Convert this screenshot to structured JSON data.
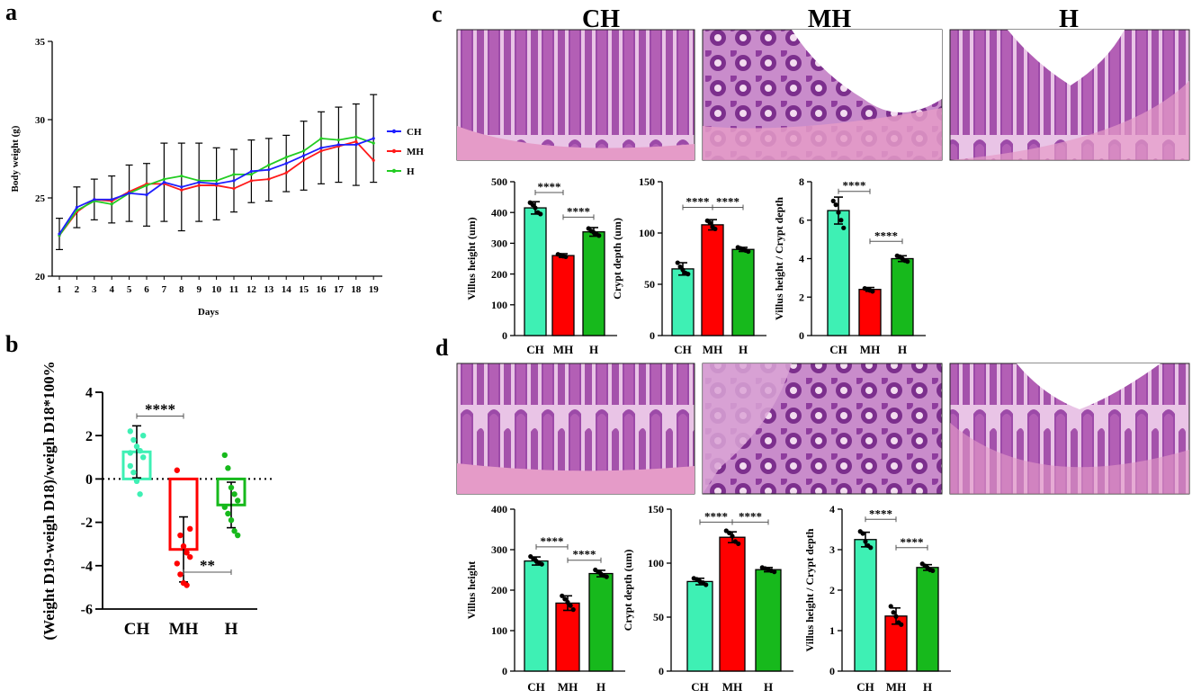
{
  "colors": {
    "CH": "#3ef0b4",
    "MH": "#ff0000",
    "H": "#17b91c",
    "lineCH": "#1f1fff",
    "lineMH": "#ff1a1a",
    "lineH": "#22cc22",
    "axis": "#000000"
  },
  "labels": {
    "a": "a",
    "b": "b",
    "c": "c",
    "d": "d"
  },
  "histology": {
    "headers": [
      "CH",
      "MH",
      "H"
    ],
    "c": [
      {
        "icon": "jejunum-villi-ch-image"
      },
      {
        "icon": "jejunum-villi-mh-image"
      },
      {
        "icon": "jejunum-villi-h-image"
      }
    ],
    "d": [
      {
        "icon": "ileum-villi-ch-image"
      },
      {
        "icon": "ileum-crypt-mh-image"
      },
      {
        "icon": "ileum-villi-h-image"
      }
    ]
  },
  "chart_data": [
    {
      "id": "a",
      "type": "line",
      "title": "",
      "xlabel": "Days",
      "ylabel": "Body weight (g)",
      "x": [
        1,
        2,
        3,
        4,
        5,
        6,
        7,
        8,
        9,
        10,
        11,
        12,
        13,
        14,
        15,
        16,
        17,
        18,
        19
      ],
      "xticks": [
        "1",
        "2",
        "3",
        "4",
        "5",
        "6",
        "7",
        "8",
        "9",
        "10",
        "11",
        "12",
        "13",
        "14",
        "15",
        "16",
        "17",
        "18",
        "19"
      ],
      "ylim": [
        20,
        35
      ],
      "yticks": [
        20,
        25,
        30,
        35
      ],
      "legend": "right",
      "series": [
        {
          "name": "CH",
          "values": [
            22.7,
            24.4,
            24.9,
            24.9,
            25.3,
            25.2,
            26.0,
            25.7,
            26.0,
            25.9,
            26.1,
            26.7,
            26.8,
            27.2,
            27.7,
            28.2,
            28.4,
            28.4,
            28.8
          ],
          "errors": [
            1.0,
            1.3,
            1.3,
            1.5,
            1.8,
            2.0,
            2.5,
            2.8,
            2.5,
            2.3,
            2.0,
            2.0,
            2.0,
            1.8,
            2.2,
            2.3,
            2.4,
            2.6,
            2.8
          ]
        },
        {
          "name": "MH",
          "values": [
            22.6,
            24.1,
            24.9,
            24.8,
            25.4,
            25.9,
            25.9,
            25.5,
            25.8,
            25.8,
            25.6,
            26.1,
            26.2,
            26.6,
            27.4,
            28.0,
            28.3,
            28.6,
            27.4
          ]
        },
        {
          "name": "H",
          "values": [
            22.6,
            24.2,
            24.8,
            24.6,
            25.3,
            25.8,
            26.2,
            26.4,
            26.1,
            26.1,
            26.5,
            26.5,
            27.1,
            27.6,
            28.0,
            28.8,
            28.7,
            28.9,
            28.5
          ]
        }
      ]
    },
    {
      "id": "b",
      "type": "bar",
      "categories": [
        "CH",
        "MH",
        "H"
      ],
      "values": [
        1.25,
        -3.25,
        -1.2
      ],
      "errors": [
        1.2,
        1.5,
        1.05
      ],
      "points": [
        [
          2.2,
          1.8,
          1.5,
          1.3,
          1.0,
          0.6,
          0.3,
          -0.1,
          -0.7,
          2.0,
          1.2
        ],
        [
          0.4,
          -2.6,
          -3.1,
          -3.4,
          -3.6,
          -3.9,
          -4.4,
          -4.8,
          -4.9,
          -2.3
        ],
        [
          1.1,
          0.5,
          -0.4,
          -0.7,
          -1.0,
          -1.3,
          -1.6,
          -1.9,
          -2.4,
          -2.6
        ]
      ],
      "ylabel": "(Weight D19-weigh D18)/weigh D18*100%",
      "ylim": [
        -6,
        4
      ],
      "yticks": [
        -6,
        -4,
        -2,
        0,
        2,
        4
      ],
      "baseline_dotted": true,
      "significance": [
        {
          "from": 0,
          "to": 1,
          "text": "****",
          "y": 2.9
        },
        {
          "from": 1,
          "to": 2,
          "text": "**",
          "y": -4.3
        }
      ]
    },
    {
      "id": "c1",
      "type": "bar",
      "categories": [
        "CH",
        "MH",
        "H"
      ],
      "values": [
        415,
        260,
        337
      ],
      "errors": [
        20,
        6,
        14
      ],
      "points": [
        [
          432,
          425,
          415,
          400,
          395
        ],
        [
          264,
          261,
          258,
          256
        ],
        [
          348,
          340,
          335,
          330,
          325
        ]
      ],
      "ylabel": "Villus height (um)",
      "ylim": [
        0,
        500
      ],
      "yticks": [
        0,
        100,
        200,
        300,
        400,
        500
      ],
      "significance": [
        {
          "from": 0,
          "to": 1,
          "text": "****",
          "y": 465
        },
        {
          "from": 1,
          "to": 2,
          "text": "****",
          "y": 385
        }
      ]
    },
    {
      "id": "c2",
      "type": "bar",
      "categories": [
        "CH",
        "MH",
        "H"
      ],
      "values": [
        65,
        108,
        84
      ],
      "errors": [
        6,
        5,
        2
      ],
      "points": [
        [
          71,
          67,
          64,
          61,
          60
        ],
        [
          112,
          110,
          106,
          104
        ],
        [
          86,
          85,
          84,
          83,
          82
        ]
      ],
      "ylabel": "Crypt depth (um)",
      "ylim": [
        0,
        150
      ],
      "yticks": [
        0,
        50,
        100,
        150
      ],
      "significance": [
        {
          "from": 0,
          "to": 1,
          "text": "****",
          "y": 125
        },
        {
          "from": 1,
          "to": 2,
          "text": "****",
          "y": 125
        }
      ]
    },
    {
      "id": "c3",
      "type": "bar",
      "categories": [
        "CH",
        "MH",
        "H"
      ],
      "values": [
        6.5,
        2.4,
        4.0
      ],
      "errors": [
        0.7,
        0.1,
        0.15
      ],
      "points": [
        [
          7.0,
          6.8,
          6.4,
          6.0,
          5.6
        ],
        [
          2.45,
          2.4,
          2.35,
          2.3
        ],
        [
          4.15,
          4.1,
          4.0,
          3.9,
          3.85
        ]
      ],
      "ylabel": "Villus height / Crypt depth",
      "ylim": [
        0,
        8
      ],
      "yticks": [
        0,
        2,
        4,
        6,
        8
      ],
      "significance": [
        {
          "from": 0,
          "to": 1,
          "text": "****",
          "y": 7.5
        },
        {
          "from": 1,
          "to": 2,
          "text": "****",
          "y": 4.9
        }
      ]
    },
    {
      "id": "d1",
      "type": "bar",
      "categories": [
        "CH",
        "MH",
        "H"
      ],
      "values": [
        272,
        168,
        241
      ],
      "errors": [
        10,
        18,
        8
      ],
      "points": [
        [
          283,
          277,
          272,
          268,
          264
        ],
        [
          186,
          178,
          170,
          162,
          152
        ],
        [
          250,
          245,
          240,
          236,
          233
        ]
      ],
      "ylabel": "Villus height",
      "ylim": [
        0,
        400
      ],
      "yticks": [
        0,
        100,
        200,
        300,
        400
      ],
      "significance": [
        {
          "from": 0,
          "to": 1,
          "text": "****",
          "y": 307
        },
        {
          "from": 1,
          "to": 2,
          "text": "****",
          "y": 274
        }
      ]
    },
    {
      "id": "d2",
      "type": "bar",
      "categories": [
        "CH",
        "MH",
        "H"
      ],
      "values": [
        83,
        124,
        94
      ],
      "errors": [
        3,
        5,
        2
      ],
      "points": [
        [
          86,
          85,
          83,
          82,
          80
        ],
        [
          130,
          128,
          125,
          120,
          118
        ],
        [
          96,
          95,
          94,
          93,
          92
        ]
      ],
      "ylabel": "Crypt depth (um)",
      "ylim": [
        0,
        150
      ],
      "yticks": [
        0,
        50,
        100,
        150
      ],
      "significance": [
        {
          "from": 0,
          "to": 1,
          "text": "****",
          "y": 138
        },
        {
          "from": 1,
          "to": 2,
          "text": "****",
          "y": 138
        }
      ]
    },
    {
      "id": "d3",
      "type": "bar",
      "categories": [
        "CH",
        "MH",
        "H"
      ],
      "values": [
        3.25,
        1.36,
        2.56
      ],
      "errors": [
        0.18,
        0.2,
        0.07
      ],
      "points": [
        [
          3.45,
          3.4,
          3.2,
          3.1,
          3.05
        ],
        [
          1.6,
          1.45,
          1.35,
          1.2,
          1.15
        ],
        [
          2.65,
          2.6,
          2.55,
          2.5,
          2.48
        ]
      ],
      "ylabel": "Villus height / Crypt depth",
      "ylim": [
        0,
        4
      ],
      "yticks": [
        0,
        1,
        2,
        3,
        4
      ],
      "significance": [
        {
          "from": 0,
          "to": 1,
          "text": "****",
          "y": 3.75
        },
        {
          "from": 1,
          "to": 2,
          "text": "****",
          "y": 3.05
        }
      ]
    }
  ]
}
